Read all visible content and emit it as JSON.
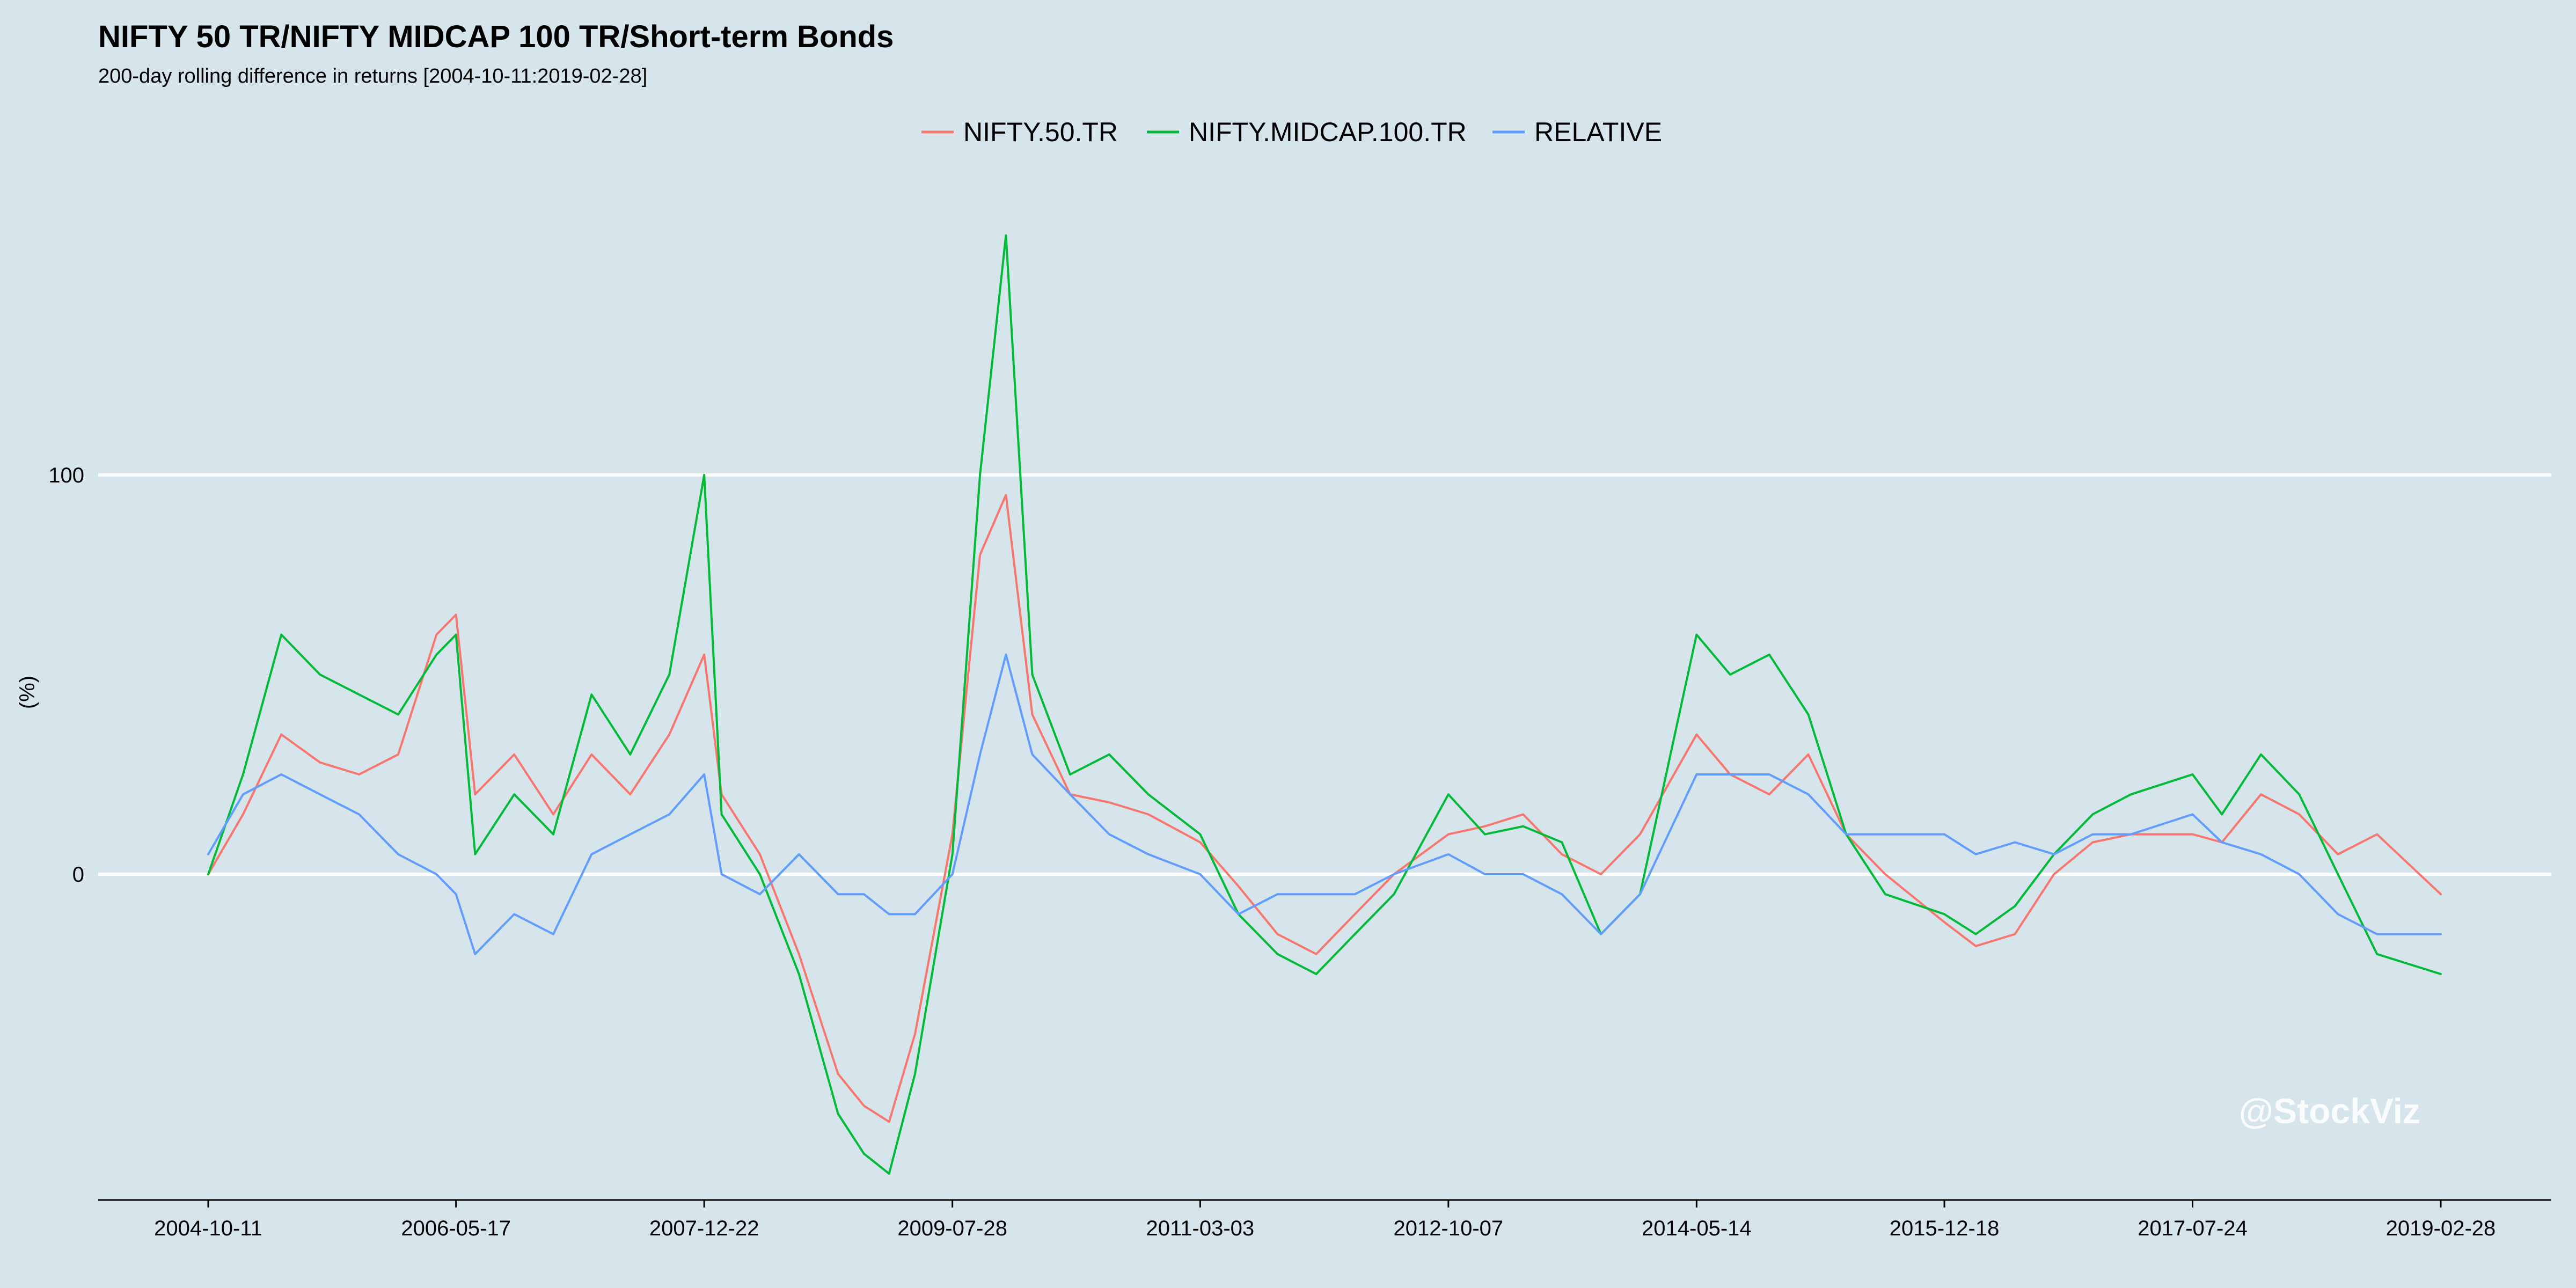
{
  "chart_data": {
    "type": "line",
    "title": "NIFTY 50 TR/NIFTY MIDCAP 100 TR/Short-term Bonds",
    "subtitle": "200-day rolling difference in returns [2004-10-11:2019-02-28]",
    "xlabel": "",
    "ylabel": "(%)",
    "x_ticks": [
      "2004-10-11",
      "2006-05-17",
      "2007-12-22",
      "2009-07-28",
      "2011-03-03",
      "2012-10-07",
      "2014-05-14",
      "2015-12-18",
      "2017-07-24",
      "2019-02-28"
    ],
    "y_ticks": [
      0,
      100
    ],
    "xlim": [
      "2004-10-11",
      "2019-02-28"
    ],
    "ylim": [
      -82,
      165
    ],
    "grid": "horizontal",
    "legend_position": "top",
    "watermark": "@StockViz",
    "series": [
      {
        "name": "NIFTY.50.TR",
        "color": "#f8766d",
        "x": [
          "2004-10-11",
          "2005-01-01",
          "2005-04-01",
          "2005-07-01",
          "2005-10-01",
          "2006-01-01",
          "2006-04-01",
          "2006-05-17",
          "2006-07-01",
          "2006-10-01",
          "2007-01-01",
          "2007-04-01",
          "2007-07-01",
          "2007-10-01",
          "2007-12-22",
          "2008-02-01",
          "2008-05-01",
          "2008-08-01",
          "2008-11-01",
          "2009-01-01",
          "2009-03-01",
          "2009-05-01",
          "2009-07-28",
          "2009-10-01",
          "2009-12-01",
          "2010-02-01",
          "2010-05-01",
          "2010-08-01",
          "2010-11-01",
          "2011-03-03",
          "2011-06-01",
          "2011-09-01",
          "2011-12-01",
          "2012-03-01",
          "2012-06-01",
          "2012-10-07",
          "2013-01-01",
          "2013-04-01",
          "2013-07-01",
          "2013-10-01",
          "2014-01-01",
          "2014-05-14",
          "2014-08-01",
          "2014-11-01",
          "2015-02-01",
          "2015-05-01",
          "2015-08-01",
          "2015-12-18",
          "2016-03-01",
          "2016-06-01",
          "2016-09-01",
          "2016-12-01",
          "2017-03-01",
          "2017-07-24",
          "2017-10-01",
          "2018-01-01",
          "2018-04-01",
          "2018-07-01",
          "2018-10-01",
          "2019-02-28"
        ],
        "values": [
          0,
          15,
          35,
          28,
          25,
          30,
          60,
          65,
          20,
          30,
          15,
          30,
          20,
          35,
          55,
          20,
          5,
          -20,
          -50,
          -58,
          -62,
          -40,
          10,
          80,
          95,
          40,
          20,
          18,
          15,
          8,
          -3,
          -15,
          -20,
          -10,
          0,
          10,
          12,
          15,
          5,
          0,
          10,
          35,
          25,
          20,
          30,
          10,
          0,
          -12,
          -18,
          -15,
          0,
          8,
          10,
          10,
          8,
          20,
          15,
          5,
          10,
          -5
        ]
      },
      {
        "name": "NIFTY.MIDCAP.100.TR",
        "color": "#00ba38",
        "x": [
          "2004-10-11",
          "2005-01-01",
          "2005-04-01",
          "2005-07-01",
          "2005-10-01",
          "2006-01-01",
          "2006-04-01",
          "2006-05-17",
          "2006-07-01",
          "2006-10-01",
          "2007-01-01",
          "2007-04-01",
          "2007-07-01",
          "2007-10-01",
          "2007-12-22",
          "2008-02-01",
          "2008-05-01",
          "2008-08-01",
          "2008-11-01",
          "2009-01-01",
          "2009-03-01",
          "2009-05-01",
          "2009-07-28",
          "2009-10-01",
          "2009-12-01",
          "2010-02-01",
          "2010-05-01",
          "2010-08-01",
          "2010-11-01",
          "2011-03-03",
          "2011-06-01",
          "2011-09-01",
          "2011-12-01",
          "2012-03-01",
          "2012-06-01",
          "2012-10-07",
          "2013-01-01",
          "2013-04-01",
          "2013-07-01",
          "2013-10-01",
          "2014-01-01",
          "2014-05-14",
          "2014-08-01",
          "2014-11-01",
          "2015-02-01",
          "2015-05-01",
          "2015-08-01",
          "2015-12-18",
          "2016-03-01",
          "2016-06-01",
          "2016-09-01",
          "2016-12-01",
          "2017-03-01",
          "2017-07-24",
          "2017-10-01",
          "2018-01-01",
          "2018-04-01",
          "2018-07-01",
          "2018-10-01",
          "2019-02-28"
        ],
        "values": [
          0,
          25,
          60,
          50,
          45,
          40,
          55,
          60,
          5,
          20,
          10,
          45,
          30,
          50,
          100,
          15,
          0,
          -25,
          -60,
          -70,
          -75,
          -50,
          5,
          100,
          160,
          50,
          25,
          30,
          20,
          10,
          -10,
          -20,
          -25,
          -15,
          -5,
          20,
          10,
          12,
          8,
          -15,
          -5,
          60,
          50,
          55,
          40,
          10,
          -5,
          -10,
          -15,
          -8,
          5,
          15,
          20,
          25,
          15,
          30,
          20,
          0,
          -20,
          -25
        ]
      },
      {
        "name": "RELATIVE",
        "color": "#619cff",
        "x": [
          "2004-10-11",
          "2005-01-01",
          "2005-04-01",
          "2005-07-01",
          "2005-10-01",
          "2006-01-01",
          "2006-04-01",
          "2006-05-17",
          "2006-07-01",
          "2006-10-01",
          "2007-01-01",
          "2007-04-01",
          "2007-07-01",
          "2007-10-01",
          "2007-12-22",
          "2008-02-01",
          "2008-05-01",
          "2008-08-01",
          "2008-11-01",
          "2009-01-01",
          "2009-03-01",
          "2009-05-01",
          "2009-07-28",
          "2009-10-01",
          "2009-12-01",
          "2010-02-01",
          "2010-05-01",
          "2010-08-01",
          "2010-11-01",
          "2011-03-03",
          "2011-06-01",
          "2011-09-01",
          "2011-12-01",
          "2012-03-01",
          "2012-06-01",
          "2012-10-07",
          "2013-01-01",
          "2013-04-01",
          "2013-07-01",
          "2013-10-01",
          "2014-01-01",
          "2014-05-14",
          "2014-08-01",
          "2014-11-01",
          "2015-02-01",
          "2015-05-01",
          "2015-08-01",
          "2015-12-18",
          "2016-03-01",
          "2016-06-01",
          "2016-09-01",
          "2016-12-01",
          "2017-03-01",
          "2017-07-24",
          "2017-10-01",
          "2018-01-01",
          "2018-04-01",
          "2018-07-01",
          "2018-10-01",
          "2019-02-28"
        ],
        "values": [
          5,
          20,
          25,
          20,
          15,
          5,
          0,
          -5,
          -20,
          -10,
          -15,
          5,
          10,
          15,
          25,
          0,
          -5,
          5,
          -5,
          -5,
          -10,
          -10,
          0,
          30,
          55,
          30,
          20,
          10,
          5,
          0,
          -10,
          -5,
          -5,
          -5,
          0,
          5,
          0,
          0,
          -5,
          -15,
          -5,
          25,
          25,
          25,
          20,
          10,
          10,
          10,
          5,
          8,
          5,
          10,
          10,
          15,
          8,
          5,
          0,
          -10,
          -15,
          -15
        ]
      }
    ]
  }
}
